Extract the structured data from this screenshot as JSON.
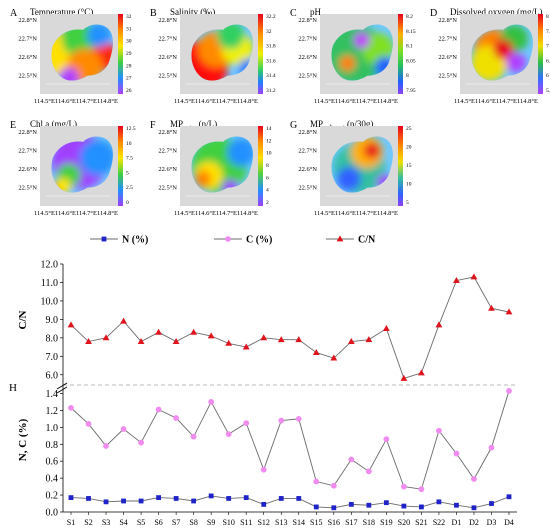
{
  "colors": {
    "n_series": "#1f24c8",
    "c_series": "#f08cf0",
    "cn_series": "#e0141c",
    "land": "#d9d9d9",
    "sea": "#ffffff"
  },
  "maps": [
    {
      "letter": "A",
      "title": "Temperature (°C)",
      "sub": "",
      "scale": [
        "32",
        "31",
        "30",
        "29",
        "28",
        "27",
        "26"
      ],
      "palette": "temp"
    },
    {
      "letter": "B",
      "title": "Salinity (‰)",
      "sub": "",
      "scale": [
        "32.2",
        "32",
        "31.8",
        "31.6",
        "31.4",
        "31.2"
      ],
      "palette": "sal"
    },
    {
      "letter": "C",
      "title": "pH",
      "sub": "",
      "scale": [
        "8.2",
        "8.15",
        "8.1",
        "8.05",
        "8",
        "7.95"
      ],
      "palette": "ph"
    },
    {
      "letter": "D",
      "title": "Dissolved oxygen (mg/L)",
      "sub": "",
      "scale": [
        "8",
        "7.5",
        "7",
        "6.5",
        "6",
        "5.5"
      ],
      "palette": "do"
    },
    {
      "letter": "E",
      "title": "Chl a (mg/L)",
      "sub": "",
      "scale": [
        "12.5",
        "10",
        "7.5",
        "5",
        "2.5",
        "0"
      ],
      "palette": "chl"
    },
    {
      "letter": "F",
      "title": "MP",
      "sub": "water",
      "suffix": " (n/L)",
      "scale": [
        "14",
        "12",
        "10",
        "8",
        "6",
        "4",
        "2"
      ],
      "palette": "mpw"
    },
    {
      "letter": "G",
      "title": "MP",
      "sub": "sediment",
      "suffix": " (n/30g)",
      "scale": [
        "25",
        "20",
        "15",
        "10",
        "5"
      ],
      "palette": "mps"
    }
  ],
  "map_axis": {
    "lat": [
      "22.8°N",
      "22.7°N",
      "22.6°N",
      "22.5°N"
    ],
    "lon": [
      "114.5°E",
      "114.6°E",
      "114.7°E",
      "114.8°E"
    ]
  },
  "chart_data": {
    "type": "line",
    "panel_label": "H",
    "categories": [
      "S1",
      "S2",
      "S3",
      "S4",
      "S5",
      "S6",
      "S7",
      "S8",
      "S9",
      "S10",
      "S11",
      "S12",
      "S13",
      "S14",
      "S15",
      "S16",
      "S17",
      "S18",
      "S19",
      "S20",
      "S21",
      "S22",
      "D1",
      "D2",
      "D3",
      "D4"
    ],
    "legend": [
      "N (%)",
      "C (%)",
      "C/N"
    ],
    "upper": {
      "ylabel": "C/N",
      "ylim": [
        5.5,
        12.0
      ],
      "yticks": [
        "6.0",
        "7.0",
        "8.0",
        "9.0",
        "10.0",
        "11.0",
        "12.0"
      ],
      "series": [
        {
          "name": "C/N",
          "values": [
            8.7,
            7.8,
            8.0,
            8.9,
            7.8,
            8.3,
            7.8,
            8.3,
            8.1,
            7.7,
            7.5,
            8.0,
            7.9,
            7.9,
            7.2,
            6.9,
            7.8,
            7.9,
            8.5,
            5.8,
            6.1,
            8.7,
            11.1,
            11.3,
            9.6,
            9.4
          ]
        }
      ]
    },
    "lower": {
      "ylabel": "N, C (%)",
      "ylim": [
        0.0,
        1.5
      ],
      "yticks": [
        "0.0",
        "0.2",
        "0.4",
        "0.6",
        "0.8",
        "1.0",
        "1.2",
        "1.4"
      ],
      "series": [
        {
          "name": "N (%)",
          "values": [
            0.17,
            0.16,
            0.12,
            0.13,
            0.13,
            0.17,
            0.16,
            0.13,
            0.19,
            0.16,
            0.17,
            0.09,
            0.16,
            0.16,
            0.06,
            0.05,
            0.09,
            0.08,
            0.11,
            0.07,
            0.06,
            0.12,
            0.08,
            0.05,
            0.1,
            0.18
          ]
        },
        {
          "name": "C (%)",
          "values": [
            1.23,
            1.04,
            0.78,
            0.98,
            0.82,
            1.21,
            1.11,
            0.89,
            1.3,
            0.92,
            1.05,
            0.5,
            1.08,
            1.1,
            0.36,
            0.31,
            0.62,
            0.48,
            0.86,
            0.3,
            0.27,
            0.96,
            0.69,
            0.39,
            0.76,
            1.43
          ]
        }
      ]
    }
  }
}
